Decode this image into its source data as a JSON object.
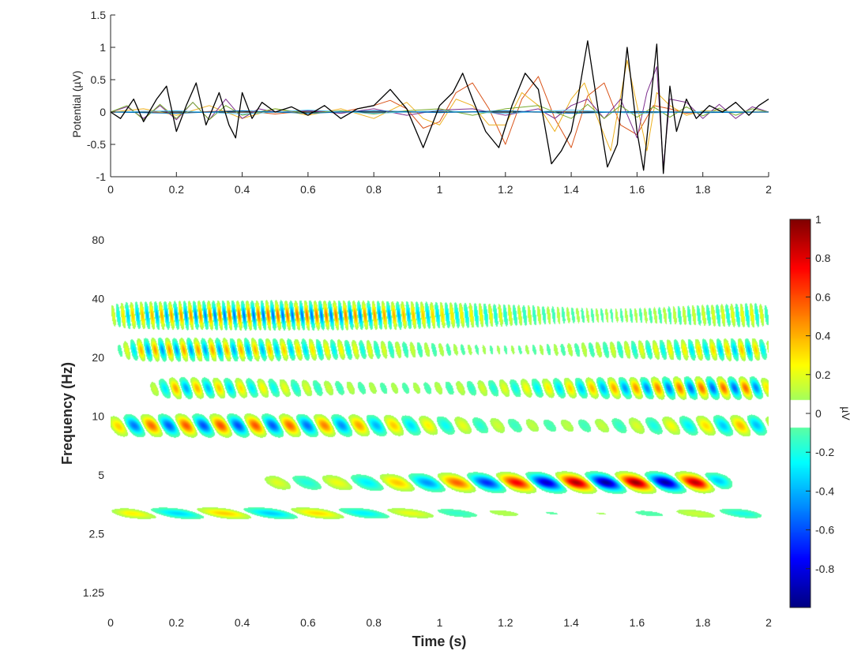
{
  "chart_data": [
    {
      "type": "line",
      "ylabel": "Potential (µV)",
      "xlim": [
        0,
        2
      ],
      "ylim": [
        -1,
        1.5
      ],
      "x_ticks": [
        "0",
        "0.2",
        "0.4",
        "0.6",
        "0.8",
        "1",
        "1.2",
        "1.4",
        "1.6",
        "1.8",
        "2"
      ],
      "y_ticks": [
        "-1",
        "-0.5",
        "0",
        "0.5",
        "1",
        "1.5"
      ],
      "zero_line": true,
      "grid": false,
      "series": [
        {
          "color": "#000000",
          "role": "sum",
          "x": [
            0,
            0.03,
            0.07,
            0.1,
            0.14,
            0.17,
            0.2,
            0.23,
            0.26,
            0.29,
            0.33,
            0.36,
            0.38,
            0.4,
            0.43,
            0.46,
            0.5,
            0.55,
            0.6,
            0.65,
            0.7,
            0.75,
            0.8,
            0.85,
            0.9,
            0.95,
            1.0,
            1.04,
            1.07,
            1.1,
            1.14,
            1.18,
            1.22,
            1.26,
            1.3,
            1.34,
            1.37,
            1.4,
            1.42,
            1.45,
            1.48,
            1.51,
            1.54,
            1.57,
            1.6,
            1.62,
            1.64,
            1.66,
            1.68,
            1.7,
            1.72,
            1.75,
            1.78,
            1.82,
            1.86,
            1.9,
            1.94,
            1.97,
            2.0
          ],
          "y": [
            0,
            -0.1,
            0.2,
            -0.15,
            0.2,
            0.4,
            -0.3,
            0.1,
            0.45,
            -0.2,
            0.3,
            -0.2,
            -0.4,
            0.3,
            -0.1,
            0.15,
            0.0,
            0.08,
            -0.05,
            0.1,
            -0.1,
            0.05,
            0.1,
            0.35,
            0.05,
            -0.55,
            0.1,
            0.3,
            0.6,
            0.2,
            -0.3,
            -0.55,
            0.1,
            0.6,
            0.35,
            -0.8,
            -0.6,
            -0.3,
            0.2,
            1.1,
            0.1,
            -0.85,
            -0.5,
            1.0,
            -0.3,
            -0.9,
            0.1,
            1.05,
            -0.95,
            0.4,
            -0.3,
            0.2,
            -0.1,
            0.1,
            0.0,
            0.15,
            -0.05,
            0.1,
            0.2
          ]
        },
        {
          "color": "#d95319",
          "x": [
            0,
            0.1,
            0.2,
            0.3,
            0.4,
            0.5,
            0.6,
            0.7,
            0.8,
            0.85,
            0.9,
            0.95,
            1.0,
            1.05,
            1.1,
            1.15,
            1.2,
            1.25,
            1.3,
            1.35,
            1.4,
            1.45,
            1.5,
            1.55,
            1.6,
            1.65,
            1.7,
            1.75,
            1.8,
            1.9,
            2.0
          ],
          "y": [
            0,
            0.01,
            -0.02,
            0.01,
            0.02,
            -0.03,
            0.02,
            0.0,
            0.1,
            0.18,
            0.05,
            -0.25,
            -0.15,
            0.3,
            0.45,
            0.05,
            -0.5,
            0.2,
            0.55,
            -0.1,
            -0.55,
            0.25,
            0.45,
            -0.2,
            -0.35,
            0.1,
            0.05,
            -0.02,
            0.01,
            0.0,
            0.0
          ]
        },
        {
          "color": "#edb120",
          "x": [
            0,
            0.1,
            0.2,
            0.3,
            0.4,
            0.5,
            0.6,
            0.7,
            0.8,
            0.9,
            0.95,
            1.0,
            1.05,
            1.1,
            1.15,
            1.2,
            1.25,
            1.3,
            1.35,
            1.4,
            1.44,
            1.48,
            1.52,
            1.57,
            1.6,
            1.63,
            1.66,
            1.7,
            1.75,
            1.8,
            1.9,
            2.0
          ],
          "y": [
            0,
            0.05,
            -0.05,
            0.1,
            -0.1,
            0.05,
            -0.05,
            0.05,
            -0.1,
            0.15,
            -0.1,
            -0.2,
            0.2,
            0.1,
            -0.2,
            -0.2,
            0.3,
            0.1,
            -0.3,
            0.2,
            0.45,
            -0.1,
            -0.6,
            0.8,
            0.1,
            -0.6,
            0.3,
            0.1,
            -0.05,
            0.02,
            0.01,
            0.0
          ]
        },
        {
          "color": "#7e2f8e",
          "x": [
            0,
            0.05,
            0.1,
            0.15,
            0.2,
            0.25,
            0.3,
            0.35,
            0.4,
            0.45,
            0.5,
            0.6,
            0.7,
            0.8,
            0.9,
            1.0,
            1.1,
            1.2,
            1.3,
            1.35,
            1.4,
            1.45,
            1.5,
            1.55,
            1.6,
            1.63,
            1.66,
            1.68,
            1.7,
            1.75,
            1.8,
            1.85,
            1.9,
            1.95,
            2.0
          ],
          "y": [
            0,
            0.08,
            -0.1,
            0.1,
            -0.12,
            0.15,
            -0.12,
            0.2,
            -0.1,
            0.05,
            0.0,
            0.02,
            -0.02,
            0.05,
            -0.05,
            0.03,
            0.05,
            -0.05,
            0.05,
            -0.1,
            0.1,
            0.2,
            -0.1,
            0.2,
            -0.4,
            0.3,
            0.7,
            -0.85,
            0.2,
            0.15,
            -0.1,
            0.12,
            -0.1,
            0.08,
            0.0
          ]
        },
        {
          "color": "#77ac30",
          "x": [
            0,
            0.05,
            0.1,
            0.15,
            0.2,
            0.25,
            0.3,
            0.35,
            0.4,
            0.5,
            0.6,
            0.7,
            0.8,
            0.9,
            1.0,
            1.1,
            1.2,
            1.3,
            1.4,
            1.45,
            1.5,
            1.55,
            1.6,
            1.65,
            1.7,
            1.75,
            1.8,
            1.85,
            1.9,
            1.95,
            2.0
          ],
          "y": [
            0,
            0.1,
            -0.12,
            0.12,
            -0.1,
            0.15,
            -0.12,
            0.1,
            -0.05,
            0.05,
            -0.02,
            0.02,
            -0.03,
            0.02,
            0.05,
            -0.05,
            0.05,
            0.1,
            -0.1,
            0.12,
            -0.1,
            0.1,
            -0.08,
            0.08,
            -0.08,
            0.08,
            -0.06,
            0.06,
            -0.05,
            0.05,
            0.0
          ]
        },
        {
          "color": "#4dbeee",
          "x": [
            0,
            0.2,
            0.4,
            0.6,
            0.8,
            1.0,
            1.2,
            1.4,
            1.6,
            1.8,
            2.0
          ],
          "y": [
            0,
            0.02,
            -0.03,
            0.03,
            -0.02,
            0.02,
            -0.02,
            0.03,
            -0.02,
            0.01,
            0.0
          ]
        },
        {
          "color": "#0072bd",
          "x": [
            0,
            0.2,
            0.4,
            0.6,
            0.8,
            1.0,
            1.2,
            1.4,
            1.6,
            1.8,
            2.0
          ],
          "y": [
            0,
            -0.02,
            0.02,
            -0.02,
            0.02,
            -0.01,
            0.02,
            -0.02,
            0.01,
            -0.01,
            0.0
          ]
        }
      ]
    },
    {
      "type": "heatmap",
      "xlabel": "Time (s)",
      "ylabel": "Frequency (Hz)",
      "xlim": [
        0,
        2
      ],
      "y_scale": "log2",
      "ylim": [
        1.05,
        100
      ],
      "x_ticks": [
        "0",
        "0.2",
        "0.4",
        "0.6",
        "0.8",
        "1",
        "1.2",
        "1.4",
        "1.6",
        "1.8",
        "2"
      ],
      "y_ticks": [
        {
          "value": 1.25,
          "label": "1.25"
        },
        {
          "value": 2.5,
          "label": "2.5"
        },
        {
          "value": 5,
          "label": "5"
        },
        {
          "value": 10,
          "label": "10"
        },
        {
          "value": 20,
          "label": "20"
        },
        {
          "value": 40,
          "label": "40"
        },
        {
          "value": 80,
          "label": "80"
        }
      ],
      "colormap": "jet",
      "masked_range": [
        -0.07,
        0.07
      ],
      "bands": [
        {
          "freq": 33,
          "amp": 0.55,
          "t_start": 0.0,
          "t_end": 2.0,
          "rate": 34,
          "phase": 0.0,
          "spread": 0.18
        },
        {
          "freq": 22,
          "amp": 0.45,
          "t_start": 0.05,
          "t_end": 2.0,
          "rate": 23,
          "phase": 1.0,
          "spread": 0.15
        },
        {
          "freq": 14,
          "amp": 0.55,
          "t_start": 0.15,
          "t_end": 2.0,
          "rate": 15,
          "phase": 2.0,
          "spread": 0.14
        },
        {
          "freq": 9,
          "amp": 0.6,
          "t_start": 0.0,
          "t_end": 2.0,
          "rate": 9.5,
          "phase": 0.5,
          "spread": 0.14
        },
        {
          "freq": 4.6,
          "amp": 0.95,
          "t_start": 0.45,
          "t_end": 1.85,
          "rate": 5.5,
          "phase": 3.0,
          "spread": 0.12
        },
        {
          "freq": 3.2,
          "amp": 0.35,
          "t_start": 0.0,
          "t_end": 2.0,
          "rate": 3.5,
          "phase": 0.3,
          "spread": 0.08
        }
      ],
      "colorbar": {
        "range": [
          -1,
          1
        ],
        "ticks": [
          "-0.8",
          "-0.6",
          "-0.4",
          "-0.2",
          "0",
          "0.2",
          "0.4",
          "0.6",
          "0.8",
          "1"
        ],
        "label": "µV"
      }
    }
  ]
}
